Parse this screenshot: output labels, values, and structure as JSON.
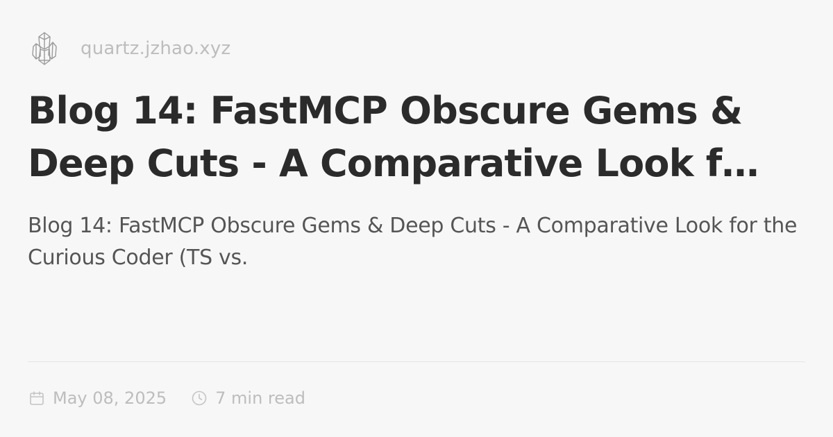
{
  "header": {
    "site": "quartz.jzhao.xyz",
    "logo_icon": "crystal-logo-icon"
  },
  "article": {
    "title": "Blog 14: FastMCP Obscure Gems & Deep Cuts - A Comparative Look f…",
    "description": "Blog 14: FastMCP Obscure Gems & Deep Cuts - A Comparative Look for the Curious Coder (TS vs."
  },
  "meta": {
    "date": "May 08, 2025",
    "date_icon": "calendar-icon",
    "read_time": "7 min read",
    "read_time_icon": "clock-icon"
  },
  "colors": {
    "background": "#f8f7f8",
    "title": "#2b2b2b",
    "description": "#555555",
    "muted": "#bdbdbd",
    "divider": "#e6e5e6"
  }
}
